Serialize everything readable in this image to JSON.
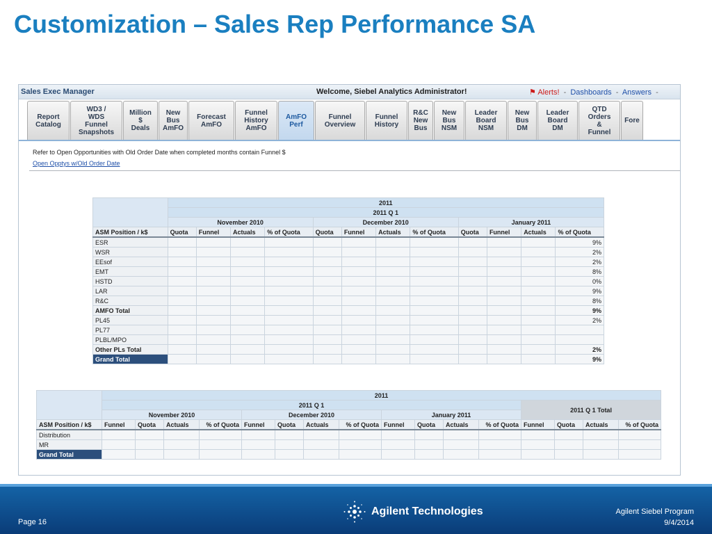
{
  "slide": {
    "title": "Customization – Sales Rep Performance SA"
  },
  "app": {
    "name": "Sales Exec Manager",
    "welcome": "Welcome, Siebel Analytics Administrator!",
    "alerts": "Alerts!",
    "dashboards": "Dashboards",
    "answers": "Answers",
    "separator": "-"
  },
  "tabs": [
    {
      "label": "Report\nCatalog"
    },
    {
      "label": "WD3 /\nWDS\nFunnel\nSnapshots"
    },
    {
      "label": "Million\n$\nDeals"
    },
    {
      "label": "New\nBus\nAmFO"
    },
    {
      "label": "Forecast\nAmFO"
    },
    {
      "label": "Funnel\nHistory\nAmFO"
    },
    {
      "label": "AmFO\nPerf"
    },
    {
      "label": "Funnel\nOverview"
    },
    {
      "label": "Funnel\nHistory"
    },
    {
      "label": "R&C\nNew\nBus"
    },
    {
      "label": "New\nBus\nNSM"
    },
    {
      "label": "Leader\nBoard\nNSM"
    },
    {
      "label": "New\nBus\nDM"
    },
    {
      "label": "Leader\nBoard\nDM"
    },
    {
      "label": "QTD\nOrders\n&\nFunnel"
    },
    {
      "label": "Fore"
    }
  ],
  "active_tab": "AmFO\nPerf",
  "report": {
    "note": "Refer to Open Opportunities with Old Order Date when completed months contain Funnel $",
    "link": "Open Opptys w/Old Order Date"
  },
  "table1": {
    "year": "2011",
    "quarter": "2011 Q 1",
    "months": [
      "November 2010",
      "December 2010",
      "January 2011"
    ],
    "row_header": "ASM Position / k$",
    "columns": [
      "Quota",
      "Funnel",
      "Actuals",
      "% of Quota"
    ],
    "rows": [
      {
        "label": "ESR",
        "pct": "9%"
      },
      {
        "label": "WSR",
        "pct": "2%"
      },
      {
        "label": "EEsof",
        "pct": "2%"
      },
      {
        "label": "EMT",
        "pct": "8%"
      },
      {
        "label": "HSTD",
        "pct": "0%"
      },
      {
        "label": "LAR",
        "pct": "9%"
      },
      {
        "label": "R&C",
        "pct": "8%"
      },
      {
        "label": "AMFO Total",
        "pct": "9%"
      },
      {
        "label": "PL45",
        "pct": "2%"
      },
      {
        "label": "PL77",
        "pct": ""
      },
      {
        "label": "PLBL/MPO",
        "pct": ""
      },
      {
        "label": "Other PLs Total",
        "pct": "2%"
      },
      {
        "label": "Grand Total",
        "pct": "9%"
      }
    ]
  },
  "table2": {
    "year": "2011",
    "quarter": "2011 Q 1",
    "quarter_total": "2011 Q 1 Total",
    "months": [
      "November 2010",
      "December 2010",
      "January 2011"
    ],
    "row_header": "ASM Position / k$",
    "columns": [
      "Funnel",
      "Quota",
      "Actuals",
      "% of Quota"
    ],
    "rows": [
      {
        "label": "Distribution"
      },
      {
        "label": "MR"
      },
      {
        "label": "Grand Total"
      }
    ]
  },
  "footer": {
    "page": "Page 16",
    "brand": "Agilent Technologies",
    "program": "Agilent Siebel Program",
    "date": "9/4/2014"
  },
  "colors": {
    "title": "#1a7fc0",
    "footer_bg": "#0a3c78",
    "grand_total_bg": "#2c4f7c",
    "link": "#1e4fa8",
    "alert": "#cc1a1a"
  }
}
